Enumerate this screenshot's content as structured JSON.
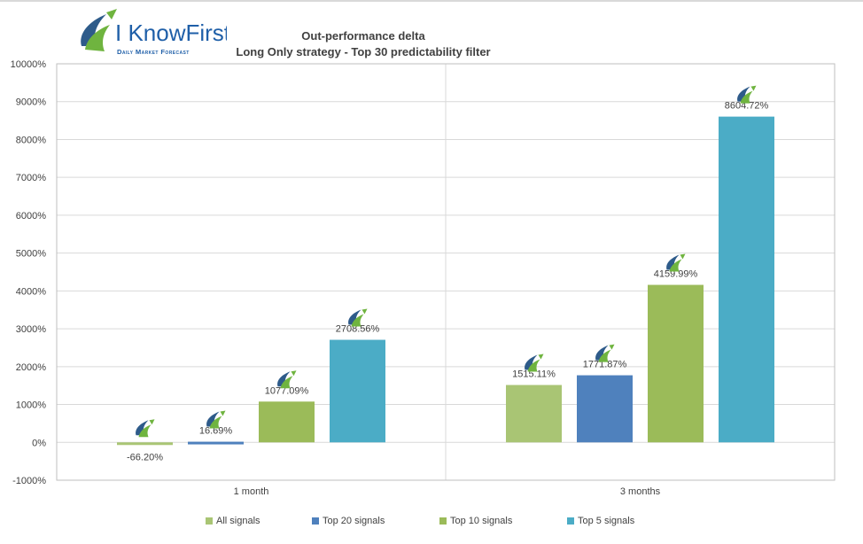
{
  "logo": {
    "brand": "I KnowFirst",
    "tagline": "Daily Market Forecast"
  },
  "title_lines": [
    "Out-performance delta",
    "Long Only strategy - Top 30 predictability filter"
  ],
  "chart_data": {
    "type": "bar",
    "title": "Out-performance delta Long Only strategy - Top 30 predictability filter",
    "categories": [
      "1 month",
      "3 months"
    ],
    "series": [
      {
        "name": "All signals",
        "color": "#a9c574",
        "values": [
          -66.2,
          1515.11
        ],
        "labels": [
          "-66.20%",
          "1515.11%"
        ]
      },
      {
        "name": "Top 20 signals",
        "color": "#4f81bd",
        "values": [
          16.69,
          1771.87
        ],
        "labels": [
          "16.69%",
          "1771.87%"
        ]
      },
      {
        "name": "Top 10 signals",
        "color": "#9bbb59",
        "values": [
          1077.09,
          4159.99
        ],
        "labels": [
          "1077.09%",
          "4159.99%"
        ]
      },
      {
        "name": "Top 5 signals",
        "color": "#4bacc6",
        "values": [
          2708.56,
          8604.72
        ],
        "labels": [
          "2708.56%",
          "8604.72%"
        ]
      }
    ],
    "ylim": [
      -1000,
      10000
    ],
    "yticks": [
      -1000,
      0,
      1000,
      2000,
      3000,
      4000,
      5000,
      6000,
      7000,
      8000,
      9000,
      10000
    ],
    "ytick_labels": [
      "-1000%",
      "0%",
      "1000%",
      "2000%",
      "3000%",
      "4000%",
      "5000%",
      "6000%",
      "7000%",
      "8000%",
      "9000%",
      "10000%"
    ],
    "grid": true,
    "legend": "bottom"
  }
}
